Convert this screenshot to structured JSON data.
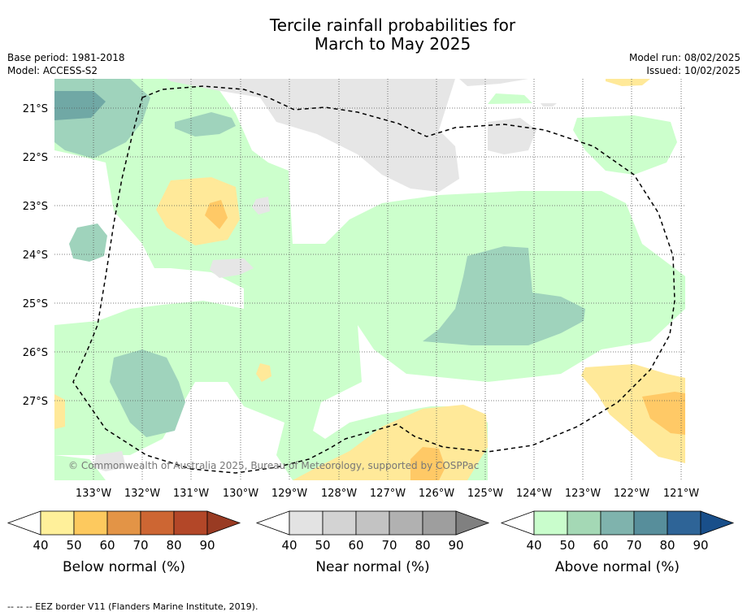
{
  "title": {
    "line1": "Tercile rainfall probabilities for",
    "line2": "March to May 2025"
  },
  "meta": {
    "base_period": "Base period: 1981-2018",
    "model": "Model: ACCESS-S2",
    "model_run": "Model run: 08/02/2025",
    "issued": "Issued: 10/02/2025"
  },
  "map": {
    "latitude_labels": [
      "21°S",
      "22°S",
      "23°S",
      "24°S",
      "25°S",
      "26°S",
      "27°S"
    ],
    "longitude_labels": [
      "133°W",
      "132°W",
      "131°W",
      "130°W",
      "129°W",
      "128°W",
      "127°W",
      "126°W",
      "125°W",
      "124°W",
      "123°W",
      "122°W",
      "121°W"
    ],
    "copyright": "© Commonwealth of Australia 2025, Bureau of Meteorology, supported by COSPPac",
    "colors": {
      "above_40": "#ccffcc",
      "above_50": "#9fd3bc",
      "above_60": "#70a8a5",
      "below_40": "#ffe999",
      "below_50": "#ffc966",
      "near_40": "#e6e6e6",
      "near_50": "#d6d6d6"
    }
  },
  "colorbars": [
    {
      "title": "Below normal (%)",
      "ticks": [
        "40",
        "50",
        "60",
        "70",
        "80",
        "90"
      ],
      "colors": [
        "#fff09a",
        "#fdc95e",
        "#e39446",
        "#cd6633",
        "#b34728"
      ],
      "arrow_color": "#993b23"
    },
    {
      "title": "Near normal (%)",
      "ticks": [
        "40",
        "50",
        "60",
        "70",
        "80",
        "90"
      ],
      "colors": [
        "#e3e3e3",
        "#d3d3d3",
        "#c3c3c3",
        "#b1b1b1",
        "#9e9e9e"
      ],
      "arrow_color": "#808080"
    },
    {
      "title": "Above normal (%)",
      "ticks": [
        "40",
        "50",
        "60",
        "70",
        "80",
        "90"
      ],
      "colors": [
        "#c9fdcc",
        "#a4d8b5",
        "#7fb3ad",
        "#578e9b",
        "#2e6497"
      ],
      "arrow_color": "#194f8a"
    }
  ],
  "footnote": "--  --  -- EEZ border V11 (Flanders Marine Institute, 2019)."
}
